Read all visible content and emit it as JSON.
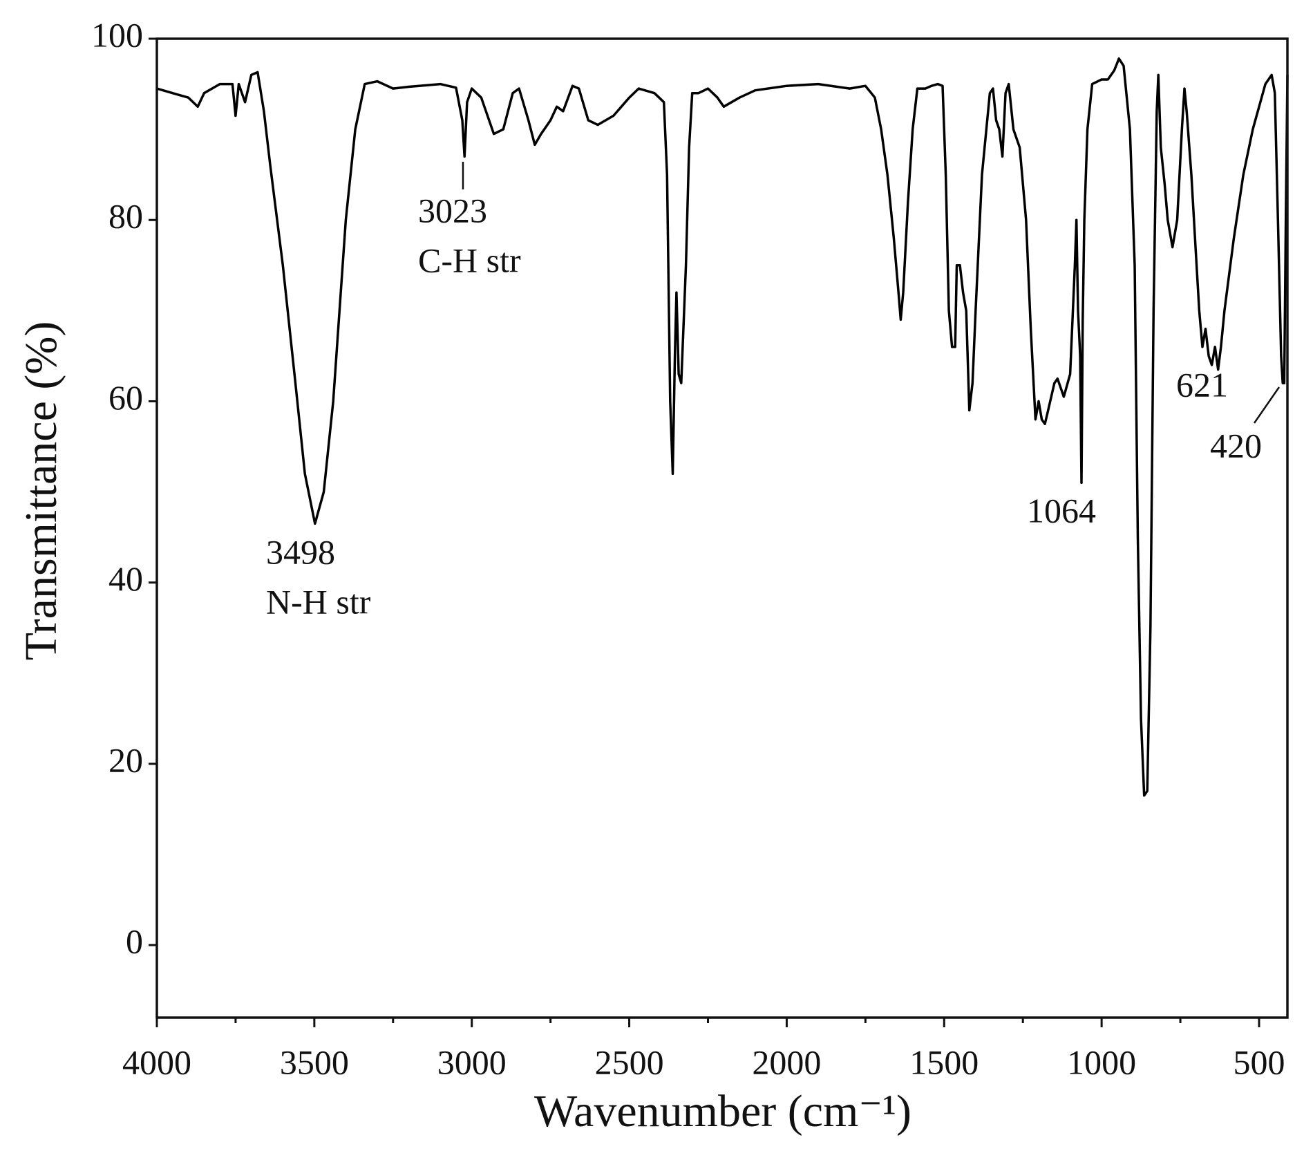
{
  "chart_data": {
    "type": "line",
    "xlabel": "Wavenumber (cm⁻¹)",
    "ylabel": "Transmittance (%)",
    "color": "#000000",
    "xlim": [
      4000,
      410
    ],
    "ylim": [
      -8,
      100
    ],
    "xticks": [
      4000,
      3500,
      3000,
      2500,
      2000,
      1500,
      1000,
      500
    ],
    "xminorticks": [
      3750,
      3250,
      2750,
      2250,
      1750,
      1250,
      750
    ],
    "yticks": [
      0,
      20,
      40,
      60,
      80,
      100
    ],
    "annotations": [
      {
        "label": "3498",
        "note": "N-H str"
      },
      {
        "label": "3023",
        "note": "C-H str"
      },
      {
        "label": "1064"
      },
      {
        "label": "621"
      },
      {
        "label": "420"
      }
    ],
    "x": [
      4000,
      3950,
      3900,
      3870,
      3850,
      3800,
      3760,
      3750,
      3740,
      3720,
      3700,
      3680,
      3660,
      3640,
      3600,
      3560,
      3530,
      3498,
      3470,
      3440,
      3400,
      3370,
      3340,
      3300,
      3250,
      3200,
      3100,
      3050,
      3030,
      3023,
      3015,
      3000,
      2970,
      2930,
      2900,
      2870,
      2850,
      2820,
      2800,
      2780,
      2750,
      2730,
      2710,
      2680,
      2660,
      2630,
      2600,
      2550,
      2500,
      2470,
      2420,
      2390,
      2380,
      2370,
      2362,
      2355,
      2350,
      2343,
      2335,
      2320,
      2310,
      2300,
      2280,
      2250,
      2220,
      2200,
      2150,
      2100,
      2000,
      1900,
      1800,
      1750,
      1720,
      1700,
      1680,
      1660,
      1645,
      1638,
      1630,
      1615,
      1600,
      1585,
      1560,
      1540,
      1520,
      1505,
      1495,
      1485,
      1475,
      1465,
      1460,
      1450,
      1440,
      1430,
      1420,
      1410,
      1400,
      1380,
      1355,
      1345,
      1335,
      1325,
      1315,
      1305,
      1295,
      1280,
      1260,
      1240,
      1225,
      1210,
      1200,
      1190,
      1180,
      1170,
      1150,
      1140,
      1120,
      1100,
      1085,
      1080,
      1075,
      1068,
      1064,
      1060,
      1055,
      1045,
      1030,
      1000,
      980,
      960,
      945,
      930,
      910,
      895,
      885,
      875,
      865,
      855,
      845,
      835,
      825,
      820,
      812,
      800,
      790,
      775,
      760,
      745,
      737,
      730,
      715,
      700,
      690,
      680,
      670,
      660,
      650,
      640,
      630,
      621,
      610,
      580,
      550,
      520,
      480,
      460,
      450,
      440,
      430,
      425,
      420,
      415,
      410
    ],
    "values": [
      94.5,
      94,
      93.5,
      92.5,
      94,
      95,
      95,
      91.5,
      95,
      93,
      96,
      96.3,
      92,
      86,
      75,
      62,
      52,
      46.5,
      50,
      60,
      80,
      90,
      95,
      95.3,
      94.5,
      94.7,
      95,
      94.6,
      91,
      87,
      93,
      94.5,
      93.5,
      89.5,
      90,
      94,
      94.5,
      91,
      88.3,
      89.5,
      91,
      92.5,
      92,
      94.8,
      94.5,
      91,
      90.5,
      91.5,
      93.5,
      94.5,
      94,
      93,
      85,
      60,
      52,
      65,
      72,
      63,
      62,
      75,
      88,
      94,
      94,
      94.5,
      93.5,
      92.5,
      93.5,
      94.3,
      94.8,
      95,
      94.5,
      94.8,
      93.5,
      90,
      85,
      78,
      72,
      69,
      72,
      82,
      90,
      94.5,
      94.5,
      94.8,
      95,
      94.8,
      85,
      70,
      66,
      66,
      75,
      75,
      72,
      70,
      59,
      62,
      70,
      85,
      94,
      94.5,
      91,
      90,
      87,
      94,
      95,
      90,
      88,
      80,
      68,
      58,
      60,
      58,
      57.5,
      59,
      62,
      62.5,
      60.5,
      63,
      75,
      80,
      70,
      65,
      51,
      69,
      80,
      90,
      95,
      95.5,
      95.5,
      96.5,
      97.8,
      97,
      90,
      75,
      45,
      25,
      16.5,
      17,
      35,
      70,
      92,
      96,
      88,
      84,
      80,
      77,
      80,
      90,
      94.5,
      92,
      85,
      76,
      70,
      66,
      68,
      65,
      64,
      66,
      63.5,
      66,
      70,
      78,
      85,
      90,
      95,
      96,
      94,
      80,
      65,
      62,
      62,
      80,
      96
    ]
  }
}
